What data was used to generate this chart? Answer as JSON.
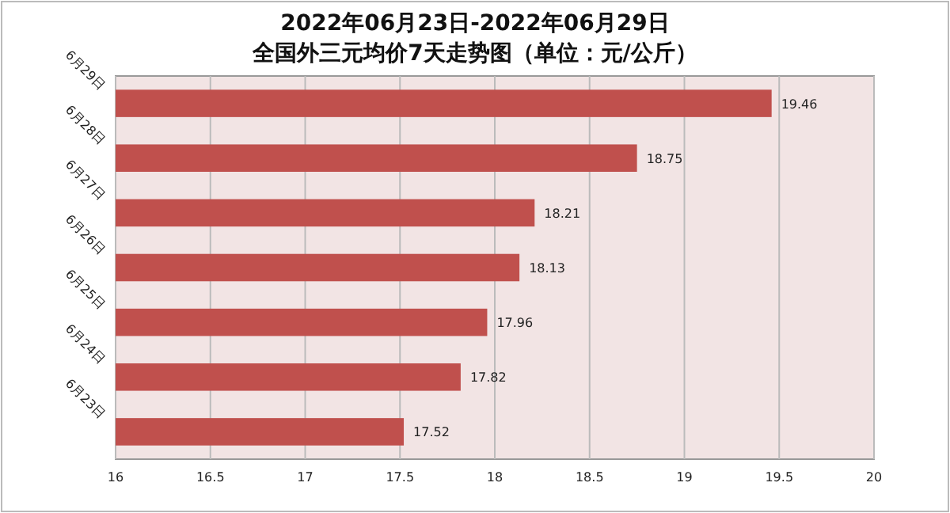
{
  "chart_data": {
    "type": "bar",
    "orientation": "horizontal",
    "title": "2022年06月23日-2022年06月29日",
    "subtitle": "全国外三元均价7天走势图（单位：元/公斤）",
    "categories": [
      "6月29日",
      "6月28日",
      "6月27日",
      "6月26日",
      "6月25日",
      "6月24日",
      "6月23日"
    ],
    "values": [
      19.46,
      18.75,
      18.21,
      18.13,
      17.96,
      17.82,
      17.52
    ],
    "color": "#c0504d",
    "xlim": [
      16,
      20
    ],
    "xticks": [
      16,
      16.5,
      17,
      17.5,
      18,
      18.5,
      19,
      19.5,
      20
    ],
    "grid": "x",
    "data_labels": true
  }
}
